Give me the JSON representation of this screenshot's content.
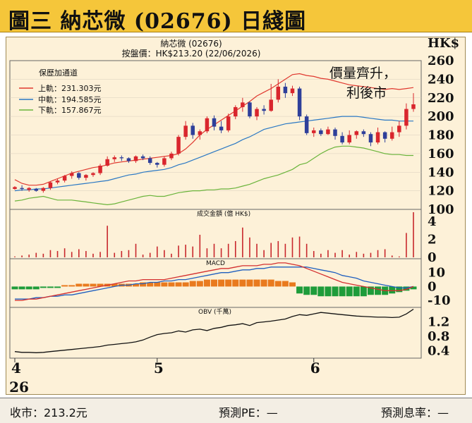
{
  "header": {
    "title": "圖三  納芯微 (02676) 日綫圖"
  },
  "chart_header": {
    "stock_name": "納芯微 (02676)",
    "close_line": "按盤價：HK$213.20 (22/06/2026)",
    "currency": "HK$"
  },
  "annotation": {
    "line1": "價量齊升，",
    "line2": "利後市"
  },
  "legend": {
    "title": "保歷加通道",
    "upper": "上軌：231.303元",
    "middle": "中軌：194.585元",
    "lower": "下軌：157.867元"
  },
  "colors": {
    "upper_band": "#e0382f",
    "middle_band": "#2a78c4",
    "lower_band": "#6ab43b",
    "up_candle": "#d9262d",
    "down_candle": "#2e3f9a",
    "volume": "#c8272c",
    "macd_pos": "#e97a1e",
    "macd_neg": "#1e9c3a",
    "obv": "#111111"
  },
  "footer": {
    "close": "收市：213.2元",
    "pe": "預測PE：—",
    "yield": "預測息率：—"
  },
  "chart_data": [
    {
      "type": "candlestick",
      "ylim": [
        100,
        260
      ],
      "yticks": [
        "260",
        "240",
        "220",
        "200",
        "180",
        "160",
        "140",
        "120",
        "100"
      ],
      "xticks": [
        "4",
        "5",
        "6"
      ],
      "x_year_label": "26",
      "candles": [
        [
          122,
          124,
          121,
          125
        ],
        [
          123,
          122,
          120,
          126
        ],
        [
          121,
          123,
          119,
          124
        ],
        [
          122,
          120,
          119,
          123
        ],
        [
          120,
          123,
          118,
          124
        ],
        [
          123,
          129,
          121,
          130
        ],
        [
          129,
          131,
          127,
          133
        ],
        [
          131,
          136,
          129,
          137
        ],
        [
          136,
          139,
          133,
          141
        ],
        [
          139,
          134,
          132,
          140
        ],
        [
          134,
          137,
          131,
          138
        ],
        [
          137,
          139,
          135,
          140
        ],
        [
          139,
          147,
          137,
          149
        ],
        [
          147,
          154,
          146,
          157
        ],
        [
          154,
          156,
          151,
          158
        ],
        [
          156,
          155,
          152,
          158
        ],
        [
          155,
          152,
          150,
          156
        ],
        [
          152,
          157,
          150,
          158
        ],
        [
          157,
          155,
          153,
          159
        ],
        [
          155,
          150,
          148,
          157
        ],
        [
          150,
          148,
          145,
          151
        ],
        [
          148,
          155,
          146,
          157
        ],
        [
          155,
          160,
          153,
          162
        ],
        [
          160,
          178,
          158,
          180
        ],
        [
          178,
          190,
          175,
          195
        ],
        [
          190,
          180,
          176,
          193
        ],
        [
          180,
          184,
          175,
          186
        ],
        [
          184,
          198,
          182,
          200
        ],
        [
          198,
          189,
          185,
          201
        ],
        [
          189,
          185,
          182,
          195
        ],
        [
          185,
          200,
          183,
          203
        ],
        [
          200,
          210,
          197,
          212
        ],
        [
          210,
          215,
          205,
          220
        ],
        [
          215,
          200,
          198,
          216
        ],
        [
          200,
          208,
          196,
          210
        ],
        [
          208,
          206,
          202,
          212
        ],
        [
          206,
          218,
          205,
          235
        ],
        [
          218,
          232,
          215,
          240
        ],
        [
          232,
          225,
          220,
          236
        ],
        [
          225,
          230,
          222,
          233
        ],
        [
          230,
          200,
          196,
          232
        ],
        [
          200,
          182,
          180,
          202
        ],
        [
          182,
          185,
          178,
          188
        ],
        [
          185,
          181,
          179,
          187
        ],
        [
          181,
          186,
          180,
          189
        ],
        [
          186,
          179,
          175,
          188
        ],
        [
          179,
          172,
          170,
          183
        ],
        [
          172,
          180,
          170,
          185
        ],
        [
          180,
          184,
          176,
          185
        ],
        [
          184,
          181,
          178,
          186
        ],
        [
          181,
          172,
          168,
          183
        ],
        [
          172,
          183,
          170,
          188
        ],
        [
          183,
          176,
          172,
          184
        ],
        [
          176,
          183,
          174,
          189
        ],
        [
          183,
          190,
          178,
          195
        ],
        [
          190,
          208,
          186,
          214
        ],
        [
          208,
          213,
          205,
          225
        ]
      ],
      "upper_band": [
        132,
        128,
        126,
        126,
        127,
        130,
        133,
        136,
        139,
        141,
        143,
        145,
        146,
        148,
        150,
        151,
        152,
        153,
        154,
        155,
        156,
        157,
        158,
        160,
        165,
        172,
        180,
        186,
        191,
        196,
        201,
        206,
        211,
        216,
        222,
        226,
        230,
        235,
        240,
        245,
        246,
        244,
        243,
        241,
        240,
        238,
        236,
        234,
        233,
        232,
        231,
        230,
        229,
        230,
        229,
        230,
        231
      ],
      "middle_band": [
        120,
        121,
        121,
        122,
        122,
        123,
        124,
        125,
        126,
        127,
        128,
        129,
        130,
        131,
        133,
        135,
        137,
        138,
        140,
        141,
        142,
        143,
        145,
        148,
        150,
        153,
        156,
        159,
        162,
        165,
        168,
        171,
        175,
        178,
        182,
        186,
        188,
        190,
        192,
        193,
        194,
        195,
        196,
        197,
        198,
        199,
        200,
        200,
        200,
        199,
        198,
        197,
        196,
        196,
        195,
        195,
        195
      ],
      "lower_band": [
        109,
        110,
        112,
        113,
        114,
        112,
        110,
        110,
        110,
        109,
        108,
        107,
        106,
        105,
        106,
        108,
        110,
        112,
        114,
        115,
        114,
        114,
        116,
        118,
        119,
        120,
        120,
        121,
        121,
        122,
        122,
        123,
        125,
        127,
        130,
        133,
        135,
        137,
        140,
        143,
        148,
        150,
        155,
        160,
        164,
        167,
        168,
        168,
        167,
        166,
        164,
        162,
        160,
        159,
        159,
        158,
        158
      ]
    },
    {
      "type": "bar",
      "title": "成交金額 (億 HK$)",
      "ylim": [
        0,
        5
      ],
      "yticks": [
        "4",
        "2",
        "0"
      ],
      "values": [
        0.1,
        0.2,
        0.3,
        0.5,
        0.4,
        0.8,
        0.7,
        1.0,
        0.6,
        0.9,
        0.7,
        0.4,
        0.6,
        3.5,
        0.5,
        0.7,
        0.8,
        1.5,
        0.3,
        0.5,
        1.2,
        0.8,
        0.4,
        1.3,
        1.4,
        1.2,
        2.5,
        1.0,
        1.5,
        1.0,
        1.5,
        1.8,
        3.3,
        2.2,
        1.5,
        0.8,
        1.6,
        1.8,
        1.5,
        2.2,
        2.3,
        1.5,
        0.7,
        0.4,
        0.8,
        0.5,
        0.8,
        0.3,
        0.6,
        0.4,
        0.5,
        0.8,
        0.9,
        0.2,
        0.1,
        2.7,
        5.0
      ]
    },
    {
      "type": "line",
      "title": "MACD",
      "ylim": [
        -15,
        20
      ],
      "yticks": [
        "10",
        "0",
        "-10"
      ],
      "dif": [
        -10,
        -10,
        -9,
        -9,
        -8,
        -7,
        -6,
        -5,
        -4,
        -3,
        -2,
        -1,
        0,
        1,
        2,
        3,
        4,
        4,
        5,
        5,
        5,
        5,
        6,
        7,
        8,
        9,
        10,
        11,
        12,
        13,
        13,
        14,
        15,
        15,
        15,
        16,
        16,
        17,
        17,
        16,
        15,
        13,
        11,
        9,
        7,
        5,
        3,
        2,
        1,
        0,
        -1,
        -2,
        -3,
        -3,
        -3,
        -2,
        0
      ],
      "dea": [
        -9,
        -9,
        -9,
        -8,
        -8,
        -7,
        -7,
        -6,
        -6,
        -5,
        -4,
        -3,
        -2,
        -1,
        0,
        1,
        1,
        2,
        2,
        3,
        3,
        4,
        4,
        5,
        5,
        6,
        7,
        8,
        9,
        10,
        10,
        11,
        12,
        12,
        13,
        13,
        14,
        14,
        14,
        14,
        14,
        14,
        13,
        12,
        11,
        10,
        8,
        7,
        6,
        4,
        3,
        2,
        1,
        0,
        -1,
        -1,
        0
      ],
      "hist": [
        -2,
        -2,
        -2,
        -2,
        -1,
        -1,
        -1,
        1,
        1,
        2,
        2,
        2,
        2,
        2,
        2,
        2,
        2,
        2,
        3,
        3,
        3,
        3,
        3,
        3,
        3,
        4,
        4,
        5,
        5,
        5,
        5,
        5,
        5,
        5,
        5,
        5,
        5,
        4,
        4,
        3,
        -5,
        -6,
        -6,
        -7,
        -7,
        -7,
        -7,
        -7,
        -7,
        -7,
        -6,
        -6,
        -6,
        -5,
        -4,
        -3,
        -2
      ]
    },
    {
      "type": "line",
      "title": "OBV (千萬)",
      "ylim": [
        0.2,
        1.6
      ],
      "yticks": [
        "1.2",
        "0.8",
        "0.4"
      ],
      "values": [
        0.38,
        0.36,
        0.36,
        0.35,
        0.36,
        0.38,
        0.4,
        0.42,
        0.44,
        0.46,
        0.48,
        0.5,
        0.52,
        0.56,
        0.58,
        0.6,
        0.62,
        0.65,
        0.7,
        0.78,
        0.85,
        0.88,
        0.9,
        0.95,
        0.92,
        0.98,
        1.0,
        0.96,
        1.02,
        1.05,
        1.1,
        1.12,
        1.15,
        1.1,
        1.18,
        1.2,
        1.22,
        1.25,
        1.28,
        1.35,
        1.4,
        1.38,
        1.42,
        1.46,
        1.44,
        1.42,
        1.4,
        1.38,
        1.36,
        1.35,
        1.34,
        1.33,
        1.33,
        1.32,
        1.33,
        1.42,
        1.55
      ]
    }
  ]
}
